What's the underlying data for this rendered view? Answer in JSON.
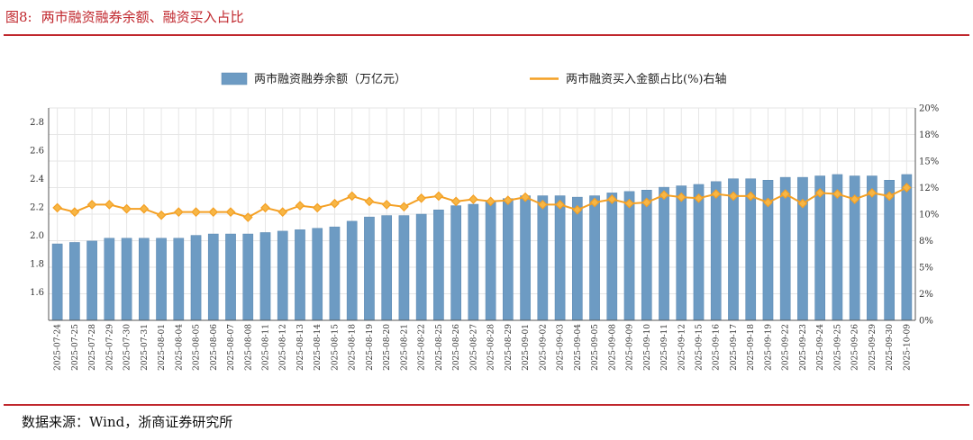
{
  "figure": {
    "number": "图8:",
    "title": "两市融资融券余额、融资买入占比",
    "source": "数据来源：Wind，浙商证券研究所"
  },
  "colors": {
    "bar": "#6d9bc3",
    "bar_edge": "#5a87b0",
    "line": "#f4a024",
    "marker_fill": "#f7b645",
    "rule": "#c0272d",
    "grid": "#e6e6e6"
  },
  "chart_data": {
    "type": "bar+line",
    "categories": [
      "2025-07-24",
      "2025-07-25",
      "2025-07-28",
      "2025-07-29",
      "2025-07-30",
      "2025-07-31",
      "2025-08-01",
      "2025-08-04",
      "2025-08-05",
      "2025-08-06",
      "2025-08-07",
      "2025-08-08",
      "2025-08-11",
      "2025-08-12",
      "2025-08-13",
      "2025-08-14",
      "2025-08-15",
      "2025-08-18",
      "2025-08-19",
      "2025-08-20",
      "2025-08-21",
      "2025-08-22",
      "2025-08-25",
      "2025-08-26",
      "2025-08-27",
      "2025-08-28",
      "2025-08-29",
      "2025-09-01",
      "2025-09-02",
      "2025-09-03",
      "2025-09-04",
      "2025-09-05",
      "2025-09-08",
      "2025-09-09",
      "2025-09-10",
      "2025-09-11",
      "2025-09-12",
      "2025-09-15",
      "2025-09-16",
      "2025-09-17",
      "2025-09-18",
      "2025-09-19",
      "2025-09-22",
      "2025-09-23",
      "2025-09-24",
      "2025-09-25",
      "2025-09-26",
      "2025-09-29",
      "2025-09-30",
      "2025-10-09"
    ],
    "series": [
      {
        "name": "两市融资融券余额（万亿元）",
        "type": "bar",
        "axis": "left",
        "values": [
          1.94,
          1.95,
          1.96,
          1.98,
          1.98,
          1.98,
          1.98,
          1.98,
          2.0,
          2.01,
          2.01,
          2.01,
          2.02,
          2.03,
          2.04,
          2.05,
          2.06,
          2.1,
          2.13,
          2.14,
          2.14,
          2.15,
          2.18,
          2.21,
          2.22,
          2.24,
          2.26,
          2.28,
          2.28,
          2.28,
          2.27,
          2.28,
          2.3,
          2.31,
          2.32,
          2.34,
          2.35,
          2.36,
          2.38,
          2.4,
          2.4,
          2.39,
          2.41,
          2.41,
          2.42,
          2.43,
          2.42,
          2.42,
          2.39,
          2.43
        ]
      },
      {
        "name": "两市融资买入金额占比(%)右轴",
        "type": "line",
        "axis": "right",
        "values": [
          10.6,
          10.2,
          10.9,
          10.9,
          10.5,
          10.5,
          9.9,
          10.2,
          10.2,
          10.2,
          10.2,
          9.7,
          10.6,
          10.2,
          10.8,
          10.6,
          11.0,
          11.7,
          11.2,
          10.9,
          10.7,
          11.5,
          11.7,
          11.2,
          11.4,
          11.2,
          11.3,
          11.6,
          10.9,
          10.9,
          10.4,
          11.1,
          11.4,
          11.0,
          11.1,
          11.8,
          11.6,
          11.5,
          11.9,
          11.7,
          11.7,
          11.1,
          11.9,
          11.0,
          12.0,
          11.9,
          11.4,
          12.0,
          11.7,
          12.5
        ]
      }
    ],
    "y_left": {
      "min": 1.4,
      "max": 2.9,
      "ticks": [
        "1.6",
        "1.8",
        "2.0",
        "2.2",
        "2.4",
        "2.6",
        "2.8"
      ],
      "tick_values": [
        1.6,
        1.8,
        2.0,
        2.2,
        2.4,
        2.6,
        2.8
      ]
    },
    "y_right": {
      "min": 0,
      "max": 20,
      "ticks": [
        "0%",
        "2%",
        "5%",
        "8%",
        "10%",
        "12%",
        "15%",
        "18%",
        "20%"
      ],
      "tick_values": [
        0,
        2.5,
        5,
        7.5,
        10,
        12.5,
        15,
        17.5,
        20
      ]
    },
    "legend": {
      "bar_label": "两市融资融券余额（万亿元）",
      "line_label": "两市融资买入金额占比(%)右轴",
      "position": "top-center"
    },
    "grid": true
  }
}
